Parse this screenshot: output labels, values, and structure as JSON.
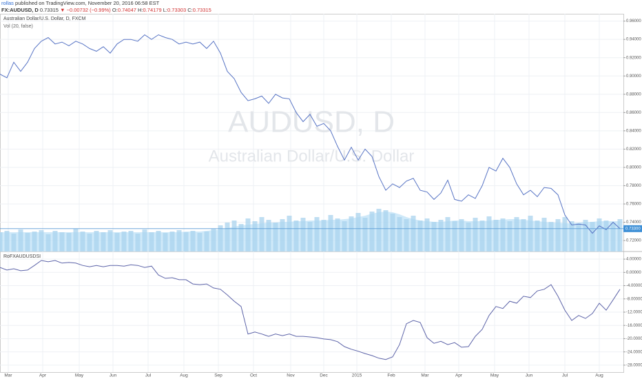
{
  "header": {
    "user": "rollas",
    "published": "published on TradingView.com, November 20, 2016 06:58 EST",
    "symbol": "FX:AUDUSD, D",
    "last": "0.73315",
    "change": "▼ −0.00732 (−0.99%)",
    "o_label": "O:",
    "o": "0.74047",
    "h_label": "H:",
    "h": "0.74179",
    "l_label": "L:",
    "l": "0.73303",
    "c_label": "C:",
    "c": "0.73315"
  },
  "chart_data": [
    {
      "type": "line",
      "title": "Australian Dollar/U.S. Dollar, D, FXCM",
      "subtitle": "Vol (20, false)",
      "watermark": "AUDUSD, D",
      "watermark_subtitle": "Australian Dollar/U.S. Dollar",
      "color": "#5673c4",
      "grid": true,
      "xlim": [
        0,
        90.5
      ],
      "xticks": [
        {
          "value": 1.2,
          "label": "Mar"
        },
        {
          "value": 6.2,
          "label": "Apr"
        },
        {
          "value": 11.5,
          "label": "May"
        },
        {
          "value": 16.4,
          "label": "Jun"
        },
        {
          "value": 21.5,
          "label": "Jul"
        },
        {
          "value": 26.7,
          "label": "Aug"
        },
        {
          "value": 31.7,
          "label": "Sep"
        },
        {
          "value": 36.8,
          "label": "Oct"
        },
        {
          "value": 42.2,
          "label": "Nov"
        },
        {
          "value": 47,
          "label": "Dec"
        },
        {
          "value": 51.8,
          "label": "2015"
        },
        {
          "value": 56.8,
          "label": "Feb"
        },
        {
          "value": 61.7,
          "label": "Mar"
        },
        {
          "value": 66.6,
          "label": "Apr"
        },
        {
          "value": 71.8,
          "label": "May"
        },
        {
          "value": 76.8,
          "label": "Jun"
        },
        {
          "value": 82,
          "label": "Jul"
        },
        {
          "value": 87,
          "label": "Aug"
        }
      ],
      "ylim": [
        0.708,
        0.968
      ],
      "yticks": [
        {
          "value": 0.72,
          "label": "0.72000"
        },
        {
          "value": 0.74,
          "label": "0.74000"
        },
        {
          "value": 0.76,
          "label": "0.76000"
        },
        {
          "value": 0.78,
          "label": "0.78000"
        },
        {
          "value": 0.8,
          "label": "0.80000"
        },
        {
          "value": 0.82,
          "label": "0.82000"
        },
        {
          "value": 0.84,
          "label": "0.84000"
        },
        {
          "value": 0.86,
          "label": "0.86000"
        },
        {
          "value": 0.88,
          "label": "0.88000"
        },
        {
          "value": 0.9,
          "label": "0.90000"
        },
        {
          "value": 0.92,
          "label": "0.92000"
        },
        {
          "value": 0.94,
          "label": "0.94000"
        },
        {
          "value": 0.96,
          "label": "0.96000"
        }
      ],
      "last_price": {
        "value": 0.733,
        "label": "0.73300"
      },
      "values": [
        0.902,
        0.898,
        0.915,
        0.905,
        0.915,
        0.93,
        0.938,
        0.942,
        0.935,
        0.937,
        0.933,
        0.938,
        0.935,
        0.93,
        0.927,
        0.932,
        0.925,
        0.935,
        0.94,
        0.94,
        0.938,
        0.945,
        0.94,
        0.945,
        0.942,
        0.94,
        0.935,
        0.937,
        0.935,
        0.937,
        0.93,
        0.938,
        0.925,
        0.905,
        0.897,
        0.882,
        0.873,
        0.875,
        0.878,
        0.87,
        0.88,
        0.876,
        0.875,
        0.86,
        0.85,
        0.858,
        0.845,
        0.848,
        0.84,
        0.823,
        0.808,
        0.822,
        0.808,
        0.82,
        0.812,
        0.79,
        0.775,
        0.782,
        0.778,
        0.785,
        0.788,
        0.775,
        0.773,
        0.765,
        0.772,
        0.786,
        0.765,
        0.763,
        0.77,
        0.766,
        0.78,
        0.8,
        0.796,
        0.81,
        0.8,
        0.782,
        0.77,
        0.775,
        0.768,
        0.778,
        0.777,
        0.77,
        0.748,
        0.737,
        0.738,
        0.737,
        0.728,
        0.736,
        0.732,
        0.74,
        0.733
      ],
      "volume": {
        "ylim": [
          0,
          100
        ],
        "color": "#a9d3ee",
        "ma_color": "#c3e4f7",
        "values": [
          28,
          30,
          26,
          32,
          27,
          29,
          31,
          25,
          30,
          28,
          27,
          33,
          29,
          26,
          30,
          28,
          31,
          27,
          29,
          30,
          26,
          32,
          28,
          30,
          27,
          29,
          31,
          28,
          30,
          27,
          29,
          33,
          38,
          42,
          45,
          40,
          48,
          44,
          50,
          46,
          42,
          47,
          52,
          45,
          49,
          43,
          50,
          46,
          53,
          48,
          44,
          51,
          56,
          49,
          58,
          62,
          60,
          55,
          50,
          47,
          52,
          45,
          48,
          43,
          46,
          50,
          44,
          47,
          42,
          49,
          45,
          51,
          46,
          48,
          44,
          50,
          47,
          52,
          45,
          49,
          43,
          47,
          50,
          44,
          41,
          46,
          43,
          48,
          45,
          42,
          47
        ],
        "ma": [
          28,
          28,
          28,
          28,
          28,
          28,
          28,
          28,
          28,
          28,
          28,
          28,
          28,
          28,
          28,
          28,
          28,
          28,
          28,
          28,
          28,
          28,
          28,
          28,
          28,
          28,
          28,
          29,
          29,
          29,
          30,
          31,
          32,
          34,
          36,
          38,
          39,
          40,
          41,
          42,
          42,
          43,
          43,
          44,
          44,
          45,
          45,
          45,
          46,
          46,
          47,
          48,
          50,
          52,
          55,
          57,
          58,
          57,
          54,
          50,
          47,
          45,
          44,
          43,
          43,
          44,
          45,
          45,
          44,
          44,
          44,
          45,
          46,
          46,
          47,
          47,
          46,
          45,
          44,
          43,
          42,
          42,
          41,
          41,
          42,
          43,
          43,
          44,
          44,
          44,
          44
        ]
      }
    },
    {
      "type": "line",
      "title": "RoFXAUDUSDSI",
      "color": "#5c63a8",
      "grid": true,
      "xlim": [
        0,
        90.5
      ],
      "ylim": [
        -30.1,
        6.3
      ],
      "yticks": [
        {
          "value": 4,
          "label": "4.00000"
        },
        {
          "value": 0,
          "label": "0.00000"
        },
        {
          "value": -4,
          "label": "-4.00000"
        },
        {
          "value": -8,
          "label": "-8.00000"
        },
        {
          "value": -12,
          "label": "-12.00000"
        },
        {
          "value": -16,
          "label": "-16.00000"
        },
        {
          "value": -20,
          "label": "-20.00000"
        },
        {
          "value": -24,
          "label": "-24.00000"
        },
        {
          "value": -28,
          "label": "-28.00000"
        }
      ],
      "values": [
        1.5,
        0.7,
        1.1,
        0.5,
        0.7,
        2.1,
        3.6,
        3.2,
        3.6,
        2.8,
        3.0,
        2.8,
        2.1,
        1.7,
        2.1,
        1.7,
        2.1,
        2.1,
        1.9,
        2.3,
        2.1,
        1.5,
        1.9,
        -0.8,
        -1.8,
        -1.6,
        -2.2,
        -2.2,
        -3.5,
        -3.7,
        -3.5,
        -4.7,
        -5.1,
        -6.8,
        -8.7,
        -10.3,
        -18.6,
        -18.0,
        -18.6,
        -19.3,
        -18.6,
        -19.1,
        -18.6,
        -19.3,
        -19.3,
        -19.5,
        -19.7,
        -20.1,
        -20.3,
        -20.9,
        -22.4,
        -23.2,
        -23.8,
        -24.5,
        -25.1,
        -25.9,
        -26.3,
        -25.5,
        -21.8,
        -15.5,
        -14.5,
        -15.1,
        -19.7,
        -21.4,
        -20.8,
        -21.8,
        -21.2,
        -22.6,
        -22.4,
        -19.3,
        -17.2,
        -13.0,
        -10.3,
        -10.9,
        -8.7,
        -9.3,
        -7.2,
        -7.6,
        -5.6,
        -5.1,
        -3.7,
        -7.2,
        -11.4,
        -14.5,
        -13.0,
        -13.9,
        -12.4,
        -9.3,
        -11.4,
        -8.3,
        -5.1
      ]
    }
  ]
}
